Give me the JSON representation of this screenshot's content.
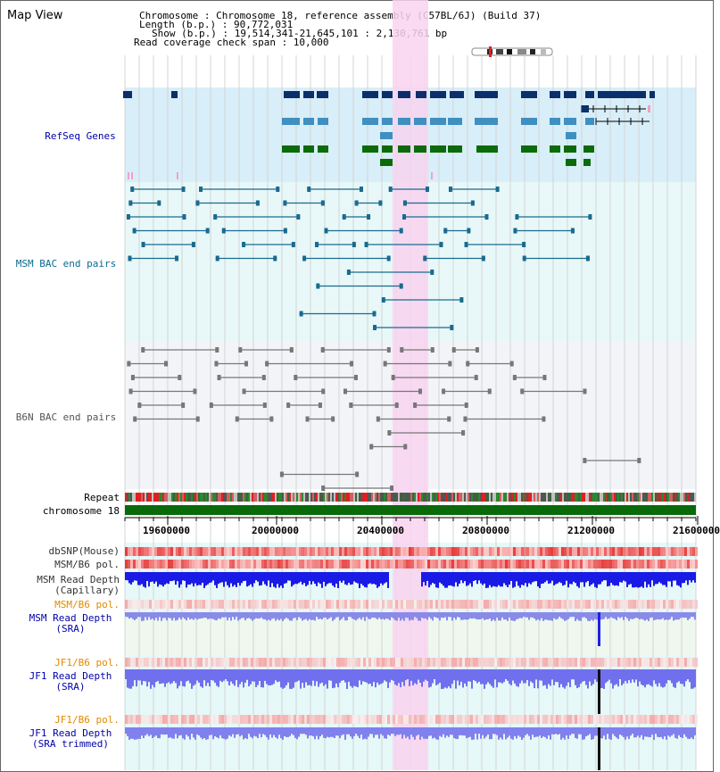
{
  "title": "Map View",
  "info": {
    "chromosome": "Chromosome    : Chromosome 18, reference assembly (C57BL/6J) (Build 37)",
    "length": "Length (b.p.) : 90,772,031",
    "show": "Show (b.p.) : 19,514,341-21,645,101 : 2,130,761 bp",
    "coverage": "Read coverage check span : 10,000"
  },
  "tracks": {
    "refseq": "RefSeq Genes",
    "msm_bac": "MSM BAC end pairs",
    "b6n_bac": "B6N BAC end pairs",
    "repeat": "Repeat",
    "chromosome": "chromosome 18",
    "dbsnp": "dbSNP(Mouse)",
    "msm_b6_pol_1": "MSM/B6 pol.",
    "msm_depth_cap_1": "MSM Read Depth",
    "msm_depth_cap_2": "(Capillary)",
    "msm_b6_pol_2": "MSM/B6 pol.",
    "msm_depth_sra_1": "MSM Read Depth",
    "msm_depth_sra_2": "(SRA)",
    "jf1_b6_pol_1": "JF1/B6 pol.",
    "jf1_depth_sra_1": "JF1 Read Depth",
    "jf1_depth_sra_2": "(SRA)",
    "jf1_b6_pol_2": "JF1/B6 pol.",
    "jf1_depth_trim_1": "JF1 Read Depth",
    "jf1_depth_trim_2": "(SRA trimmed)"
  },
  "axis": {
    "ticks": [
      "19600000",
      "20000000",
      "20400000",
      "20800000",
      "21200000",
      "21600000"
    ]
  },
  "colors": {
    "gene_dark": "#0a2f6b",
    "gene_mid": "#3f8fc0",
    "gene_green": "#0b6b0b",
    "msm_bac": "#1a6a90",
    "b6n_bac": "#777777",
    "highlight": "#f8d4f0",
    "msm_label": "#0000aa",
    "jf1_label": "#e08a00",
    "chromosome_bar": "#0a6a0a"
  }
}
